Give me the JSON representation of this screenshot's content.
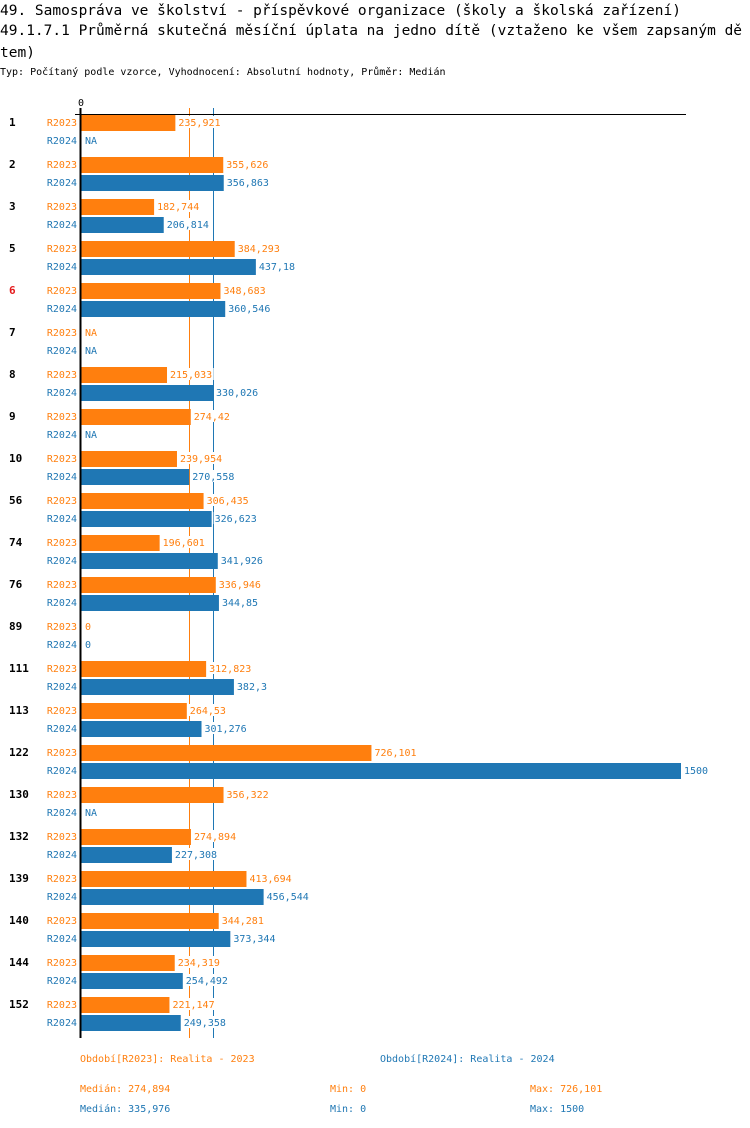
{
  "header": {
    "title": "49. Samospráva ve školství - příspěvkové organizace (školy a školská zařízení)",
    "subtitle": "49.1.7.1 Průměrná skutečná měsíční úplata na jedno dítě (vztaženo ke všem zapsaným dětem)",
    "meta": "Typ: Počítaný podle vzorce, Vyhodnocení: Absolutní hodnoty, Průměr: Medián"
  },
  "colors": {
    "R2023": "#ff7f0e",
    "R2024": "#1f77b4",
    "highlight_category": "#e41a1c"
  },
  "chart_data": {
    "type": "bar",
    "orientation": "horizontal",
    "title": "49.1.7.1 Průměrná skutečná měsíční úplata na jedno dítě (vztaženo ke všem zapsaným dětem)",
    "xlabel": "",
    "ylabel": "",
    "xlim": [
      0,
      1500
    ],
    "x_tick_labels": [
      "0"
    ],
    "grid": false,
    "highlighted_category": "6",
    "categories": [
      "1",
      "2",
      "3",
      "5",
      "6",
      "7",
      "8",
      "9",
      "10",
      "56",
      "74",
      "76",
      "89",
      "111",
      "113",
      "122",
      "130",
      "132",
      "139",
      "140",
      "144",
      "152"
    ],
    "series": [
      {
        "name": "R2023",
        "values": [
          235.921,
          355.626,
          182.744,
          384.293,
          348.683,
          null,
          215.033,
          274.42,
          239.954,
          306.435,
          196.601,
          336.946,
          0,
          312.823,
          264.53,
          726.101,
          356.322,
          274.894,
          413.694,
          344.281,
          234.319,
          221.147
        ],
        "labels": [
          "235,921",
          "355,626",
          "182,744",
          "384,293",
          "348,683",
          "NA",
          "215,033",
          "274,42",
          "239,954",
          "306,435",
          "196,601",
          "336,946",
          "0",
          "312,823",
          "264,53",
          "726,101",
          "356,322",
          "274,894",
          "413,694",
          "344,281",
          "234,319",
          "221,147"
        ]
      },
      {
        "name": "R2024",
        "values": [
          null,
          356.863,
          206.814,
          437.18,
          360.546,
          null,
          330.026,
          null,
          270.558,
          326.623,
          341.926,
          344.85,
          0,
          382.3,
          301.276,
          1500,
          null,
          227.308,
          456.544,
          373.344,
          254.492,
          249.358
        ],
        "labels": [
          "NA",
          "356,863",
          "206,814",
          "437,18",
          "360,546",
          "NA",
          "330,026",
          "NA",
          "270,558",
          "326,623",
          "341,926",
          "344,85",
          "0",
          "382,3",
          "301,276",
          "1500",
          "NA",
          "227,308",
          "456,544",
          "373,344",
          "254,492",
          "249,358"
        ]
      }
    ],
    "reference_lines": [
      {
        "series": "R2023",
        "type": "median",
        "value": 274.894
      },
      {
        "series": "R2024",
        "type": "median",
        "value": 335.976
      }
    ]
  },
  "legend": {
    "R2023": {
      "label": "Období[R2023]: Realita - 2023",
      "median": "Medián: 274,894",
      "min": "Min: 0",
      "max": "Max: 726,101"
    },
    "R2024": {
      "label": "Období[R2024]: Realita - 2024",
      "median": "Medián: 335,976",
      "min": "Min: 0",
      "max": "Max: 1500"
    }
  }
}
